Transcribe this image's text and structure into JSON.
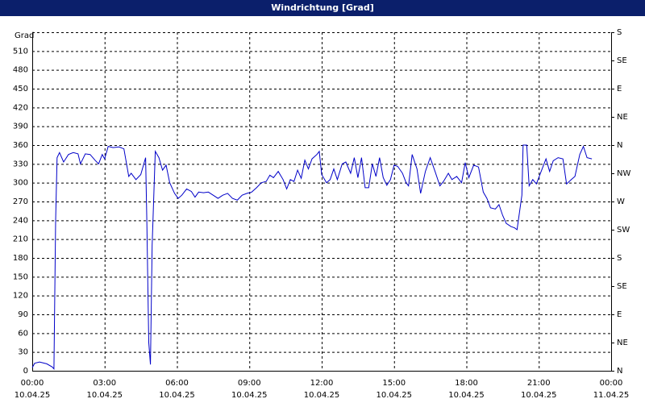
{
  "chart_data": {
    "type": "line",
    "title": "Windrichtung [Grad]",
    "y_label": "Grad",
    "xlim": [
      0,
      24
    ],
    "xticks": [
      {
        "value": 0,
        "label": "00:00"
      },
      {
        "value": 3,
        "label": "03:00"
      },
      {
        "value": 6,
        "label": "06:00"
      },
      {
        "value": 9,
        "label": "09:00"
      },
      {
        "value": 12,
        "label": "12:00"
      },
      {
        "value": 15,
        "label": "15:00"
      },
      {
        "value": 18,
        "label": "18:00"
      },
      {
        "value": 21,
        "label": "21:00"
      },
      {
        "value": 24,
        "label": "00:00"
      }
    ],
    "xtick_dates": [
      "10.04.25",
      "10.04.25",
      "10.04.25",
      "10.04.25",
      "10.04.25",
      "10.04.25",
      "10.04.25",
      "10.04.25",
      "11.04.25"
    ],
    "ylim": [
      0,
      540
    ],
    "yticks": [
      0,
      30,
      60,
      90,
      120,
      150,
      180,
      210,
      240,
      270,
      300,
      330,
      360,
      390,
      420,
      450,
      480,
      510
    ],
    "y2lim": [
      0,
      540
    ],
    "y2ticks": [
      {
        "value": 0,
        "label": "N"
      },
      {
        "value": 45,
        "label": "NE"
      },
      {
        "value": 90,
        "label": "E"
      },
      {
        "value": 135,
        "label": "SE"
      },
      {
        "value": 180,
        "label": "S"
      },
      {
        "value": 225,
        "label": "SW"
      },
      {
        "value": 270,
        "label": "W"
      },
      {
        "value": 315,
        "label": "NW"
      },
      {
        "value": 360,
        "label": "N"
      },
      {
        "value": 405,
        "label": "NE"
      },
      {
        "value": 450,
        "label": "E"
      },
      {
        "value": 495,
        "label": "SE"
      },
      {
        "value": 540,
        "label": "S"
      }
    ],
    "grid": true,
    "series": [
      {
        "color": "#0000c8",
        "x": [
          0.0,
          0.1,
          0.3,
          0.6,
          0.83,
          0.9,
          0.97,
          1.03,
          1.13,
          1.3,
          1.5,
          1.7,
          1.9,
          2.0,
          2.2,
          2.4,
          2.6,
          2.75,
          2.9,
          3.0,
          3.15,
          3.35,
          3.6,
          3.8,
          4.0,
          4.1,
          4.3,
          4.5,
          4.7,
          4.75,
          4.83,
          4.9,
          4.97,
          5.1,
          5.25,
          5.4,
          5.55,
          5.7,
          5.9,
          6.05,
          6.2,
          6.4,
          6.6,
          6.75,
          6.9,
          7.1,
          7.3,
          7.5,
          7.7,
          7.9,
          8.1,
          8.3,
          8.5,
          8.7,
          8.9,
          9.1,
          9.3,
          9.5,
          9.7,
          9.85,
          10.0,
          10.2,
          10.4,
          10.55,
          10.7,
          10.85,
          11.0,
          11.15,
          11.3,
          11.45,
          11.6,
          11.8,
          11.9,
          12.0,
          12.2,
          12.35,
          12.5,
          12.65,
          12.85,
          13.0,
          13.2,
          13.35,
          13.5,
          13.65,
          13.8,
          13.95,
          14.1,
          14.25,
          14.4,
          14.55,
          14.7,
          14.85,
          15.0,
          15.15,
          15.35,
          15.5,
          15.6,
          15.75,
          15.95,
          16.1,
          16.3,
          16.5,
          16.7,
          16.9,
          17.05,
          17.25,
          17.4,
          17.6,
          17.8,
          17.95,
          18.1,
          18.3,
          18.5,
          18.7,
          18.85,
          19.0,
          19.2,
          19.35,
          19.5,
          19.65,
          19.85,
          20.0,
          20.1,
          20.3,
          20.35,
          20.5,
          20.6,
          20.75,
          20.9,
          21.1,
          21.3,
          21.45,
          21.6,
          21.8,
          22.0,
          22.15,
          22.35,
          22.5,
          22.7,
          22.85,
          23.0,
          23.2
        ],
        "values": [
          5,
          12,
          14,
          11,
          6,
          3,
          240,
          340,
          348,
          333,
          345,
          348,
          346,
          330,
          346,
          345,
          336,
          330,
          345,
          338,
          358,
          356,
          357,
          354,
          310,
          315,
          305,
          313,
          340,
          240,
          45,
          10,
          200,
          350,
          340,
          320,
          328,
          300,
          283,
          275,
          280,
          290,
          286,
          277,
          285,
          284,
          285,
          280,
          275,
          280,
          283,
          275,
          272,
          280,
          283,
          285,
          292,
          300,
          302,
          312,
          308,
          318,
          305,
          290,
          305,
          302,
          320,
          307,
          336,
          322,
          338,
          345,
          350,
          313,
          300,
          305,
          322,
          305,
          330,
          333,
          315,
          340,
          308,
          340,
          292,
          292,
          330,
          310,
          340,
          308,
          296,
          305,
          328,
          326,
          315,
          300,
          295,
          345,
          322,
          283,
          318,
          340,
          318,
          295,
          302,
          315,
          305,
          310,
          300,
          332,
          308,
          328,
          325,
          285,
          275,
          260,
          258,
          265,
          248,
          235,
          230,
          228,
          225,
          280,
          360,
          360,
          295,
          305,
          298,
          318,
          338,
          318,
          335,
          340,
          338,
          298,
          305,
          310,
          345,
          358,
          340,
          338
        ]
      }
    ]
  }
}
